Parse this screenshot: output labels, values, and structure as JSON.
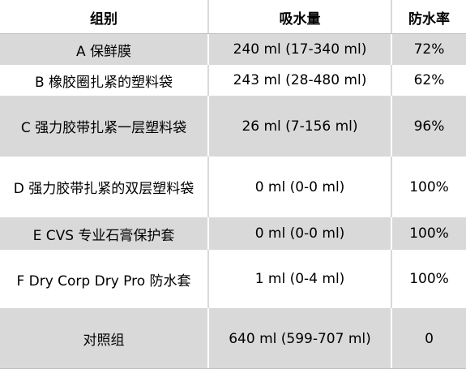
{
  "table": {
    "headers": [
      "组别",
      "吸水量",
      "防水率"
    ],
    "rows": [
      {
        "group": "A  保鲜膜",
        "absorption": "240 ml  (17-340 ml)",
        "rate": "72%"
      },
      {
        "group": "B  橡胶圈扎紧的塑料袋",
        "absorption": "243 ml  (28-480 ml)",
        "rate": "62%"
      },
      {
        "group": "C  强力胶带扎紧一层塑料袋",
        "absorption": "26 ml  (7-156 ml)",
        "rate": "96%"
      },
      {
        "group": "D  强力胶带扎紧的双层塑料袋",
        "absorption": "0 ml  (0-0 ml)",
        "rate": "100%"
      },
      {
        "group": "E CVS  专业石膏保护套",
        "absorption": "0 ml  (0-0 ml)",
        "rate": "100%"
      },
      {
        "group": "F Dry Corp Dry Pro  防水套",
        "absorption": "1 ml  (0-4 ml)",
        "rate": "100%"
      },
      {
        "group": "对照组",
        "absorption": "640 ml  (599-707 ml)",
        "rate": "0"
      }
    ]
  },
  "colors": {
    "shade": "#d9d9d9",
    "white": "#ffffff",
    "text": "#000000"
  }
}
